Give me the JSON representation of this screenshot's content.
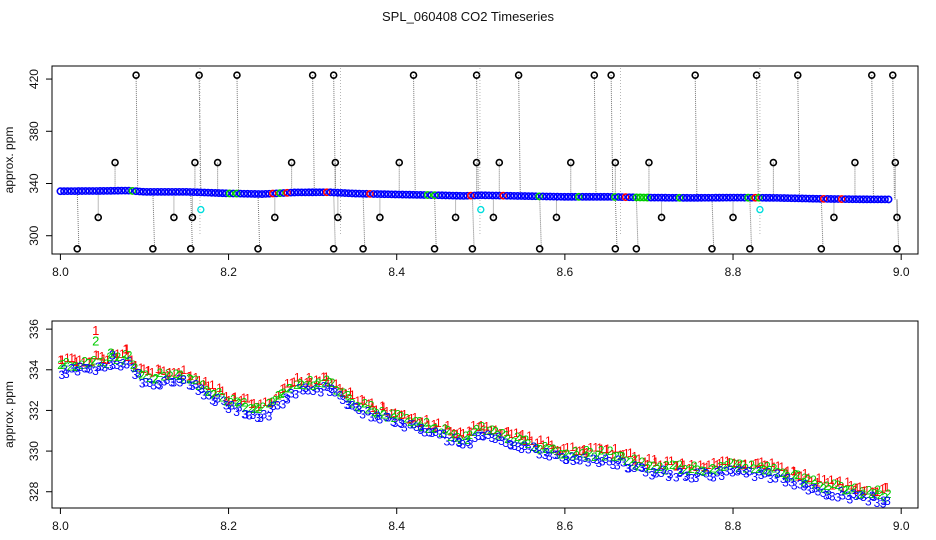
{
  "title": "SPL_060408  CO2 Timeseries",
  "chart_data": [
    {
      "type": "scatter",
      "ylabel": "approx. ppm",
      "xlim": [
        7.99,
        9.02
      ],
      "ylim": [
        286,
        430
      ],
      "xticks": [
        8.0,
        8.2,
        8.4,
        8.6,
        8.8,
        9.0
      ],
      "xtick_labels": [
        "8.0",
        "8.2",
        "8.4",
        "8.6",
        "8.8",
        "9.0"
      ],
      "yticks": [
        300,
        340,
        380,
        420
      ],
      "ytick_labels": [
        "300",
        "340",
        "380",
        "420"
      ],
      "grid": false,
      "colors": {
        "trace": "#777777",
        "outlier": "#000000",
        "main": "#0000ff",
        "red": "#ff0000",
        "green": "#00cc00",
        "cyan": "#00dddd"
      },
      "trend": [
        [
          8.0,
          334.1
        ],
        [
          8.02,
          334.2
        ],
        [
          8.05,
          334.3
        ],
        [
          8.08,
          334.6
        ],
        [
          8.1,
          333.6
        ],
        [
          8.15,
          333.6
        ],
        [
          8.2,
          332.4
        ],
        [
          8.24,
          331.9
        ],
        [
          8.28,
          333.2
        ],
        [
          8.32,
          333.3
        ],
        [
          8.35,
          332.3
        ],
        [
          8.4,
          331.6
        ],
        [
          8.45,
          331.0
        ],
        [
          8.48,
          330.5
        ],
        [
          8.5,
          331.0
        ],
        [
          8.55,
          330.4
        ],
        [
          8.6,
          329.8
        ],
        [
          8.65,
          329.8
        ],
        [
          8.7,
          329.2
        ],
        [
          8.75,
          329.0
        ],
        [
          8.8,
          329.2
        ],
        [
          8.85,
          329.0
        ],
        [
          8.9,
          328.3
        ],
        [
          8.95,
          327.9
        ],
        [
          8.985,
          327.8
        ]
      ],
      "spikes_high": [
        8.09,
        8.165,
        8.21,
        8.3,
        8.325,
        8.42,
        8.495,
        8.545,
        8.635,
        8.655,
        8.755,
        8.828,
        8.877,
        8.965,
        8.99
      ],
      "spikes_low": [
        8.02,
        8.11,
        8.155,
        8.235,
        8.325,
        8.36,
        8.445,
        8.49,
        8.57,
        8.66,
        8.685,
        8.775,
        8.82,
        8.905,
        8.995
      ],
      "mid_high_points": [
        [
          8.065,
          356
        ],
        [
          8.16,
          356
        ],
        [
          8.187,
          356
        ],
        [
          8.275,
          356
        ],
        [
          8.327,
          356
        ],
        [
          8.403,
          356
        ],
        [
          8.495,
          356
        ],
        [
          8.522,
          356
        ],
        [
          8.607,
          356
        ],
        [
          8.66,
          356
        ],
        [
          8.7,
          356
        ],
        [
          8.848,
          356
        ],
        [
          8.945,
          356
        ],
        [
          8.993,
          356
        ]
      ],
      "mid_low_points": [
        [
          8.045,
          314
        ],
        [
          8.135,
          314
        ],
        [
          8.157,
          314
        ],
        [
          8.255,
          314
        ],
        [
          8.33,
          314
        ],
        [
          8.38,
          314
        ],
        [
          8.47,
          314
        ],
        [
          8.515,
          314
        ],
        [
          8.59,
          314
        ],
        [
          8.715,
          314
        ],
        [
          8.8,
          314
        ],
        [
          8.92,
          314
        ],
        [
          8.995,
          314
        ]
      ],
      "cyan_points": [
        [
          8.167,
          320
        ],
        [
          8.5,
          320
        ],
        [
          8.832,
          320
        ]
      ],
      "gaps": [
        8.166,
        8.333,
        8.499,
        8.666,
        8.832
      ]
    },
    {
      "type": "scatter",
      "ylabel": "approx. ppm",
      "xlim": [
        7.99,
        9.02
      ],
      "ylim": [
        327.2,
        336.4
      ],
      "xticks": [
        8.0,
        8.2,
        8.4,
        8.6,
        8.8,
        9.0
      ],
      "xtick_labels": [
        "8.0",
        "8.2",
        "8.4",
        "8.6",
        "8.8",
        "9.0"
      ],
      "yticks": [
        328,
        330,
        332,
        334,
        336
      ],
      "ytick_labels": [
        "328",
        "330",
        "332",
        "334",
        "336"
      ],
      "grid": false,
      "marker_symbols": [
        "1",
        "2",
        "3"
      ],
      "marker_colors": [
        "#ff0000",
        "#00cc00",
        "#0000ff"
      ],
      "highlight_points": [
        [
          8.042,
          335.9,
          "1"
        ],
        [
          8.042,
          335.4,
          "2"
        ],
        [
          8.062,
          334.7,
          "3"
        ],
        [
          8.078,
          335.0,
          "1"
        ],
        [
          8.06,
          334.8,
          "2"
        ]
      ]
    }
  ]
}
